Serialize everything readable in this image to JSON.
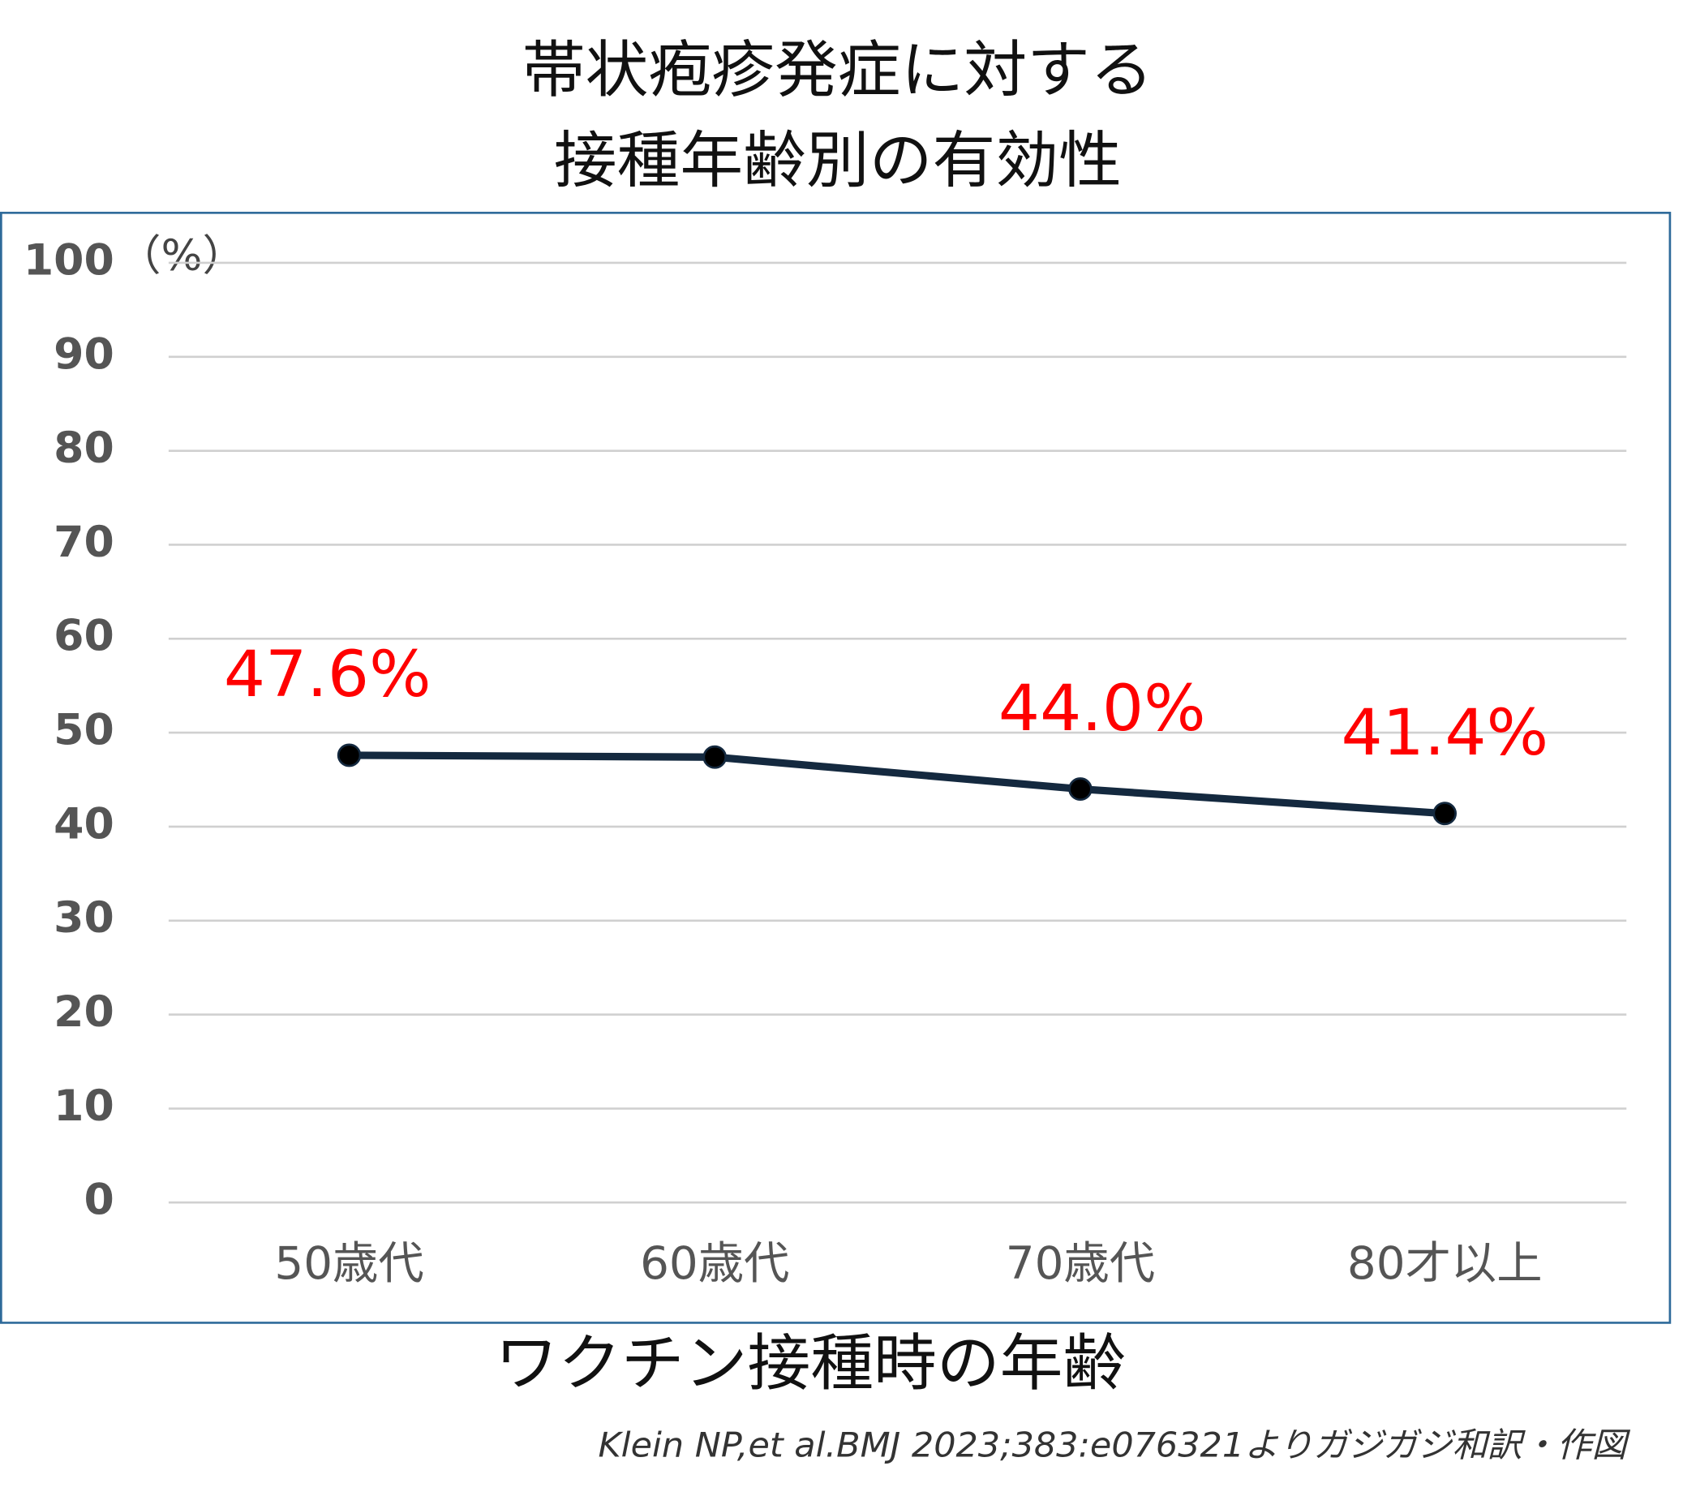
{
  "chart_data": {
    "type": "line",
    "title": [
      "帯状疱疹発症に対する",
      "接種年齢別の有効性"
    ],
    "y_label": "（%）",
    "x_label": "ワクチン接種時の年齢",
    "source": "Klein NP,et al.BMJ 2023;383:e076321よりガジガジ和訳・作図",
    "categories": [
      "50歳代",
      "60歳代",
      "70歳代",
      "80才以上"
    ],
    "values": [
      47.6,
      47.4,
      44.0,
      41.4
    ],
    "value_labels": [
      "47.6%",
      null,
      "44.0%",
      "41.4%"
    ],
    "color": "#14293f",
    "label_color": "#ff0000",
    "ylim": [
      0,
      100
    ],
    "yticks": [
      0,
      10,
      20,
      30,
      40,
      50,
      60,
      70,
      80,
      90,
      100
    ],
    "grid": true
  }
}
